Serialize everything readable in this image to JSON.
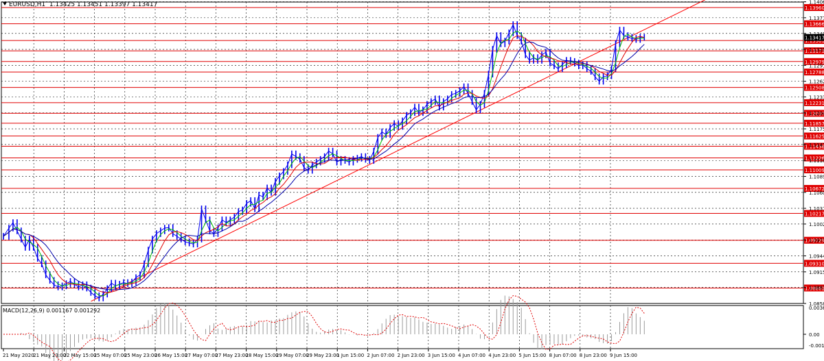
{
  "header": {
    "symbol": "EURUSD,H1",
    "ohlc": "1.13425 1.13451 1.13397 1.13417"
  },
  "macd_header": {
    "label": "MACD(12,26,9)",
    "values": "0.001167 0.001292"
  },
  "chart_data": {
    "type": "line",
    "price_axis": {
      "range": [
        1.0858,
        1.1406
      ],
      "ticks": [
        "1.14065",
        "1.13775",
        "1.13490",
        "1.13200",
        "1.12910",
        "1.12620",
        "1.12335",
        "1.12045",
        "1.11755",
        "1.11470",
        "1.11180",
        "1.10890",
        "1.10600",
        "1.10310",
        "1.10025",
        "1.09735",
        "1.09445",
        "1.09155",
        "1.08870",
        "1.08580"
      ],
      "current_price": "1.13417"
    },
    "horizontal_levels": [
      {
        "price": 1.1396,
        "label": "1.13960"
      },
      {
        "price": 1.13666,
        "label": "1.13666"
      },
      {
        "price": 1.13361,
        "label": "1.13361"
      },
      {
        "price": 1.13173,
        "label": "1.13173"
      },
      {
        "price": 1.12979,
        "label": "1.12979"
      },
      {
        "price": 1.12788,
        "label": "1.12788"
      },
      {
        "price": 1.12508,
        "label": "1.12508"
      },
      {
        "price": 1.12231,
        "label": "1.12231"
      },
      {
        "price": 1.12037,
        "label": "1.12037"
      },
      {
        "price": 1.11857,
        "label": "1.11857"
      },
      {
        "price": 1.11625,
        "label": "1.11625"
      },
      {
        "price": 1.11438,
        "label": "1.11438"
      },
      {
        "price": 1.11226,
        "label": "1.11226"
      },
      {
        "price": 1.11009,
        "label": "1.11009"
      },
      {
        "price": 1.10672,
        "label": "1.10672"
      },
      {
        "price": 1.10217,
        "label": "1.10217"
      },
      {
        "price": 1.09729,
        "label": "1.09729"
      },
      {
        "price": 1.0931,
        "label": "1.09310"
      },
      {
        "price": 1.08861,
        "label": "1.08861"
      }
    ],
    "time_labels": [
      "21 May 2020",
      "21 May 23:00",
      "22 May 15:00",
      "25 May 07:00",
      "25 May 23:00",
      "26 May 15:00",
      "27 May 07:00",
      "27 May 23:00",
      "28 May 15:00",
      "29 May 07:00",
      "29 May 23:00",
      "1 Jun 15:00",
      "2 Jun 07:00",
      "2 Jun 23:00",
      "3 Jun 15:00",
      "4 Jun 07:00",
      "4 Jun 23:00",
      "5 Jun 15:00",
      "8 Jun 07:00",
      "8 Jun 23:00",
      "9 Jun 15:00"
    ],
    "trendline": {
      "from": [
        "25 May 07:00",
        1.0862
      ],
      "to": [
        "end",
        1.1412
      ],
      "color": "#ff0000"
    },
    "close_path": [
      [
        0,
        1.098
      ],
      [
        8,
        1.0995
      ],
      [
        14,
        1.1005
      ],
      [
        20,
        1.099
      ],
      [
        26,
        1.0975
      ],
      [
        32,
        1.096
      ],
      [
        38,
        1.0975
      ],
      [
        44,
        1.096
      ],
      [
        50,
        1.094
      ],
      [
        56,
        1.093
      ],
      [
        62,
        1.091
      ],
      [
        68,
        1.09
      ],
      [
        74,
        1.0892
      ],
      [
        80,
        1.0888
      ],
      [
        86,
        1.089
      ],
      [
        92,
        1.0894
      ],
      [
        98,
        1.0898
      ],
      [
        104,
        1.0893
      ],
      [
        110,
        1.0888
      ],
      [
        116,
        1.0892
      ],
      [
        122,
        1.0886
      ],
      [
        128,
        1.0878
      ],
      [
        134,
        1.0872
      ],
      [
        140,
        1.0868
      ],
      [
        146,
        1.0875
      ],
      [
        152,
        1.0885
      ],
      [
        158,
        1.0895
      ],
      [
        164,
        1.089
      ],
      [
        170,
        1.0893
      ],
      [
        176,
        1.0896
      ],
      [
        182,
        1.0894
      ],
      [
        188,
        1.0897
      ],
      [
        194,
        1.0905
      ],
      [
        200,
        1.091
      ],
      [
        206,
        1.093
      ],
      [
        212,
        1.0955
      ],
      [
        218,
        1.0975
      ],
      [
        224,
        1.0985
      ],
      [
        230,
        1.099
      ],
      [
        236,
        1.0995
      ],
      [
        242,
        1.0996
      ],
      [
        248,
        1.0985
      ],
      [
        254,
        1.098
      ],
      [
        260,
        1.0975
      ],
      [
        266,
        1.097
      ],
      [
        272,
        1.0968
      ],
      [
        278,
        1.0966
      ],
      [
        284,
        1.0975
      ],
      [
        290,
        1.103
      ],
      [
        296,
        1.101
      ],
      [
        302,
        1.099
      ],
      [
        308,
        1.0985
      ],
      [
        314,
        1.0995
      ],
      [
        320,
        1.101
      ],
      [
        326,
        1.1005
      ],
      [
        332,
        1.101
      ],
      [
        338,
        1.1015
      ],
      [
        344,
        1.1025
      ],
      [
        350,
        1.1028
      ],
      [
        356,
        1.104
      ],
      [
        362,
        1.1045
      ],
      [
        368,
        1.103
      ],
      [
        374,
        1.1055
      ],
      [
        380,
        1.1052
      ],
      [
        386,
        1.1068
      ],
      [
        392,
        1.106
      ],
      [
        398,
        1.108
      ],
      [
        404,
        1.109
      ],
      [
        410,
        1.1098
      ],
      [
        416,
        1.111
      ],
      [
        422,
        1.113
      ],
      [
        428,
        1.1125
      ],
      [
        434,
        1.112
      ],
      [
        440,
        1.1105
      ],
      [
        446,
        1.11
      ],
      [
        452,
        1.111
      ],
      [
        458,
        1.1115
      ],
      [
        464,
        1.112
      ],
      [
        470,
        1.1125
      ],
      [
        476,
        1.1135
      ],
      [
        482,
        1.113
      ],
      [
        488,
        1.1115
      ],
      [
        494,
        1.112
      ],
      [
        500,
        1.1118
      ],
      [
        506,
        1.1115
      ],
      [
        512,
        1.112
      ],
      [
        518,
        1.1122
      ],
      [
        524,
        1.1125
      ],
      [
        530,
        1.112
      ],
      [
        536,
        1.1118
      ],
      [
        542,
        1.1135
      ],
      [
        548,
        1.116
      ],
      [
        554,
        1.117
      ],
      [
        560,
        1.1165
      ],
      [
        566,
        1.1178
      ],
      [
        572,
        1.1185
      ],
      [
        578,
        1.118
      ],
      [
        584,
        1.119
      ],
      [
        590,
        1.12
      ],
      [
        596,
        1.1205
      ],
      [
        602,
        1.1215
      ],
      [
        608,
        1.1205
      ],
      [
        614,
        1.121
      ],
      [
        620,
        1.122
      ],
      [
        626,
        1.1225
      ],
      [
        632,
        1.123
      ],
      [
        638,
        1.1215
      ],
      [
        644,
        1.1225
      ],
      [
        650,
        1.123
      ],
      [
        656,
        1.1238
      ],
      [
        662,
        1.124
      ],
      [
        668,
        1.1245
      ],
      [
        674,
        1.1252
      ],
      [
        680,
        1.124
      ],
      [
        686,
        1.1225
      ],
      [
        692,
        1.121
      ],
      [
        698,
        1.122
      ],
      [
        704,
        1.124
      ],
      [
        710,
        1.1275
      ],
      [
        716,
        1.132
      ],
      [
        722,
        1.1345
      ],
      [
        728,
        1.133
      ],
      [
        734,
        1.1335
      ],
      [
        740,
        1.135
      ],
      [
        746,
        1.1365
      ],
      [
        752,
        1.1345
      ],
      [
        758,
        1.1335
      ],
      [
        764,
        1.131
      ],
      [
        770,
        1.13
      ],
      [
        776,
        1.1305
      ],
      [
        782,
        1.13
      ],
      [
        788,
        1.131
      ],
      [
        794,
        1.1315
      ],
      [
        800,
        1.1295
      ],
      [
        806,
        1.129
      ],
      [
        812,
        1.1285
      ],
      [
        818,
        1.1292
      ],
      [
        824,
        1.13
      ],
      [
        830,
        1.1298
      ],
      [
        836,
        1.1295
      ],
      [
        842,
        1.129
      ],
      [
        848,
        1.1292
      ],
      [
        854,
        1.1285
      ],
      [
        860,
        1.128
      ],
      [
        866,
        1.127
      ],
      [
        872,
        1.1262
      ],
      [
        878,
        1.127
      ],
      [
        884,
        1.1272
      ],
      [
        890,
        1.1285
      ],
      [
        896,
        1.133
      ],
      [
        902,
        1.1355
      ],
      [
        908,
        1.1345
      ],
      [
        914,
        1.1342
      ],
      [
        920,
        1.134
      ],
      [
        926,
        1.1338
      ],
      [
        932,
        1.1342
      ],
      [
        938,
        1.1342
      ]
    ]
  }
}
